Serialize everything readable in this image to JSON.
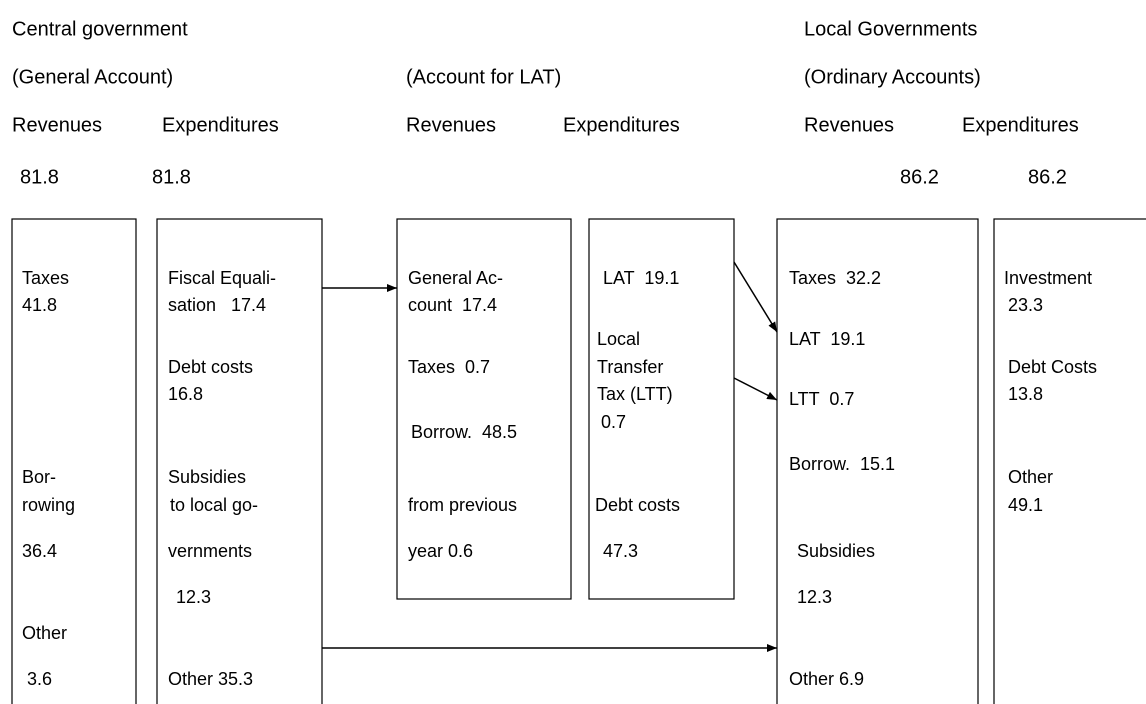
{
  "central": {
    "title": "Central government",
    "account": "(General Account)",
    "revenues_label": "Revenues",
    "expenditures_label": "Expenditures",
    "revenues_total": 81.8,
    "expenditures_total": 81.8
  },
  "lat": {
    "account": "(Account for LAT)",
    "revenues_label": "Revenues",
    "expenditures_label": "Expenditures"
  },
  "local": {
    "title": "Local Governments",
    "account": "(Ordinary Accounts)",
    "revenues_label": "Revenues",
    "expenditures_label": "Expenditures",
    "revenues_total": 86.2,
    "expenditures_total": 86.2
  },
  "boxes": [
    {
      "lines": [
        "Taxes",
        "41.8",
        "Bor-",
        "rowing",
        "36.4",
        "Other",
        "3.6"
      ]
    },
    {
      "lines": [
        "Fiscal Equali-",
        "sation   17.4",
        "Debt costs",
        "16.8",
        "Subsidies",
        "to local go-",
        "vernments",
        "12.3",
        "Other 35.3"
      ]
    },
    {
      "lines": [
        "General Ac-",
        "count  17.4",
        "Taxes  0.7",
        "Borrow.  48.5",
        "from previous",
        "year 0.6"
      ]
    },
    {
      "lines": [
        "LAT  19.1",
        "Local",
        "Transfer",
        "Tax (LTT)",
        "0.7",
        "Debt costs",
        "47.3"
      ]
    },
    {
      "lines": [
        "Taxes  32.2",
        "LAT  19.1",
        "LTT  0.7",
        "Borrow.  15.1",
        "Subsidies",
        "12.3",
        "Other 6.9"
      ]
    },
    {
      "lines": [
        "Investment",
        "23.3",
        "Debt Costs",
        "13.8",
        "Other",
        "49.1"
      ]
    }
  ]
}
